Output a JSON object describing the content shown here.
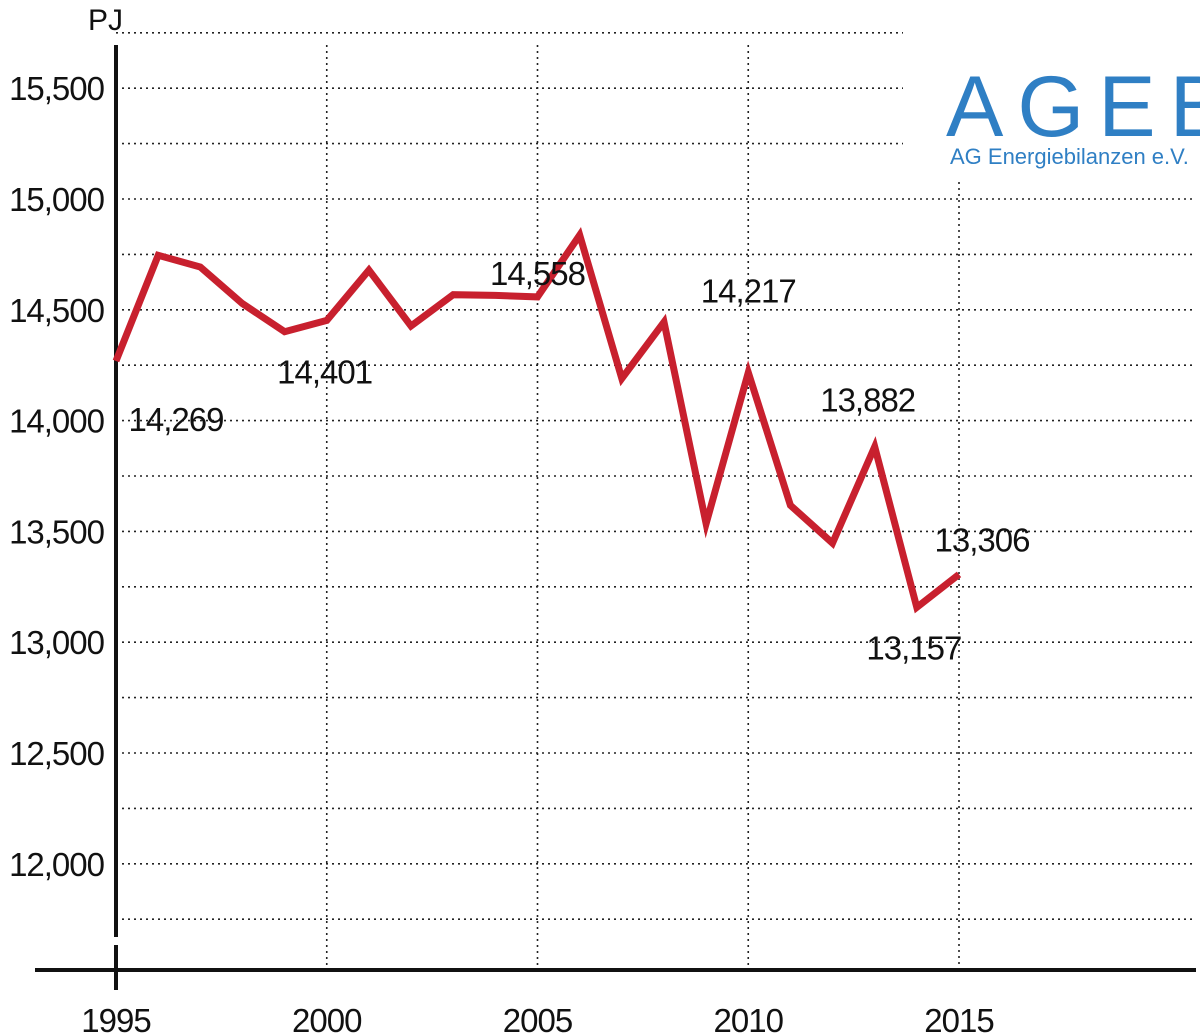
{
  "chart_data": {
    "type": "line",
    "title": "",
    "xlabel": "",
    "ylabel": "PJ",
    "xlim": [
      1995,
      2015
    ],
    "ylim": [
      11750,
      15800
    ],
    "grid": true,
    "x_ticks": [
      1995,
      2000,
      2005,
      2010,
      2015
    ],
    "x_tick_labels": [
      "1995",
      "2000",
      "2005",
      "2010",
      "2015"
    ],
    "y_ticks": [
      12000,
      12500,
      13000,
      13500,
      14000,
      14500,
      15000,
      15500
    ],
    "y_tick_labels": [
      "12,000",
      "12,500",
      "13,000",
      "13,500",
      "14,000",
      "14,500",
      "15,000",
      "15,500"
    ],
    "series": [
      {
        "color": "#c8202e",
        "x": [
          1995,
          1996,
          1997,
          1998,
          1999,
          2000,
          2001,
          2002,
          2003,
          2004,
          2005,
          2006,
          2007,
          2008,
          2009,
          2010,
          2011,
          2012,
          2013,
          2014,
          2015
        ],
        "values": [
          14269,
          14746,
          14693,
          14528,
          14401,
          14452,
          14679,
          14427,
          14568,
          14565,
          14558,
          14837,
          14190,
          14445,
          13535,
          14217,
          13618,
          13447,
          13882,
          13157,
          13306
        ]
      }
    ],
    "annotations": [
      {
        "text": "14,269",
        "year": 1995
      },
      {
        "text": "14,401",
        "year": 1999
      },
      {
        "text": "14,558",
        "year": 2005
      },
      {
        "text": "14,217",
        "year": 2010
      },
      {
        "text": "13,882",
        "year": 2013
      },
      {
        "text": "13,157",
        "year": 2014
      },
      {
        "text": "13,306",
        "year": 2015
      }
    ]
  },
  "logo": {
    "acronym": "AGEB",
    "name": "AG Energiebilanzen e.V."
  },
  "colors": {
    "line": "#c8202e",
    "logo": "#2f7fc4",
    "axis": "#111111"
  }
}
